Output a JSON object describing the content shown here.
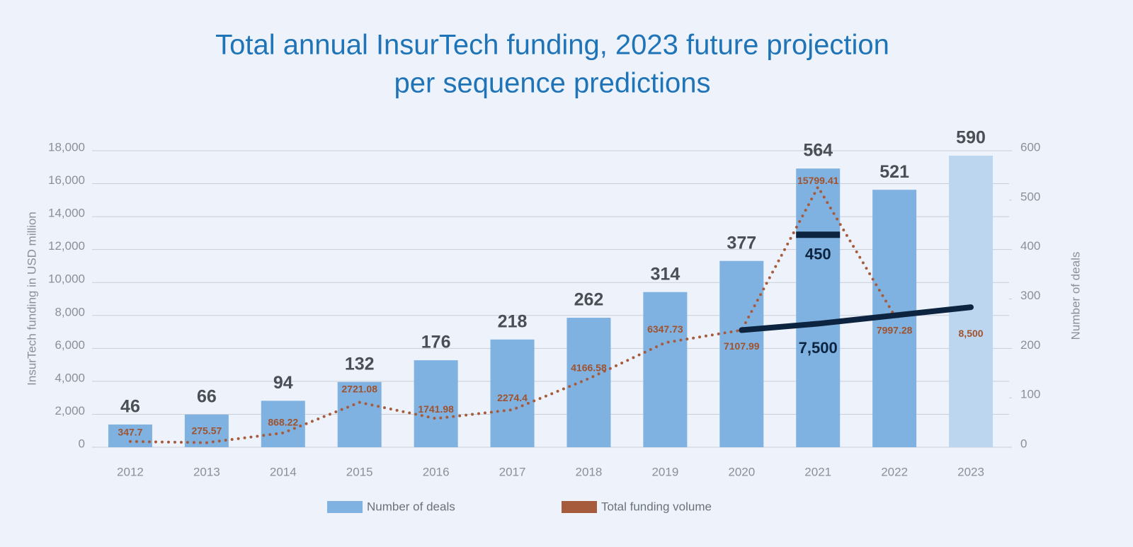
{
  "chart_data": {
    "type": "combo",
    "title": [
      "Total annual InsurTech funding, 2023 future projection",
      "per sequence predictions"
    ],
    "y_label": "InsurTech funding in USD million",
    "y2_label": "Number of deals",
    "categories": [
      "2012",
      "2013",
      "2014",
      "2015",
      "2016",
      "2017",
      "2018",
      "2019",
      "2020",
      "2021",
      "2022",
      "2023"
    ],
    "ylim": [
      0,
      18000
    ],
    "yticks": [
      0,
      {
        "value": 2000,
        "label": "2,000"
      },
      {
        "value": 4000,
        "label": "4,000"
      },
      {
        "value": 6000,
        "label": "6,000"
      },
      {
        "value": 8000,
        "label": "8,000"
      },
      {
        "value": 10000,
        "label": "10,000"
      },
      {
        "value": 12000,
        "label": "12,000"
      },
      {
        "value": 14000,
        "label": "14,000"
      },
      {
        "value": 16000,
        "label": "16,000"
      },
      {
        "value": 18000,
        "label": "18,000"
      }
    ],
    "y2lim": [
      0,
      600
    ],
    "y2ticks": [
      0,
      100,
      200,
      300,
      400,
      500,
      600
    ],
    "grid": true,
    "legend": "bottom",
    "series": [
      {
        "name": "Number of deals",
        "type": "bar",
        "axis": "y2",
        "color": "#80b2e1",
        "colors": [
          "#80b2e1",
          "#80b2e1",
          "#80b2e1",
          "#80b2e1",
          "#80b2e1",
          "#80b2e1",
          "#80b2e1",
          "#80b2e1",
          "#80b2e1",
          "#80b2e1",
          "#80b2e1",
          "#bdd6f0"
        ],
        "values": [
          46,
          66,
          94,
          132,
          176,
          218,
          262,
          314,
          377,
          564,
          521,
          590
        ]
      },
      {
        "name": "Total funding volume",
        "type": "line",
        "color": "#a65c3c",
        "values": [
          347.7,
          275.57,
          868.22,
          2721.08,
          1741.98,
          2274.4,
          4166.58,
          6347.73,
          7107.99,
          15799.41,
          7997.28,
          null
        ]
      }
    ],
    "projection": {
      "type": "line",
      "color": "#0d2440",
      "values": [
        null,
        null,
        null,
        null,
        null,
        null,
        null,
        null,
        7107.99,
        7500,
        8000,
        8500
      ],
      "value_labels": [
        null,
        null,
        null,
        null,
        null,
        null,
        null,
        null,
        null,
        "7,500",
        null,
        "8,500"
      ]
    },
    "deal_projection": {
      "type": "marker",
      "axis": "y2",
      "color": "#0d2440",
      "values": [
        null,
        null,
        null,
        null,
        null,
        null,
        null,
        null,
        null,
        450,
        null,
        null
      ]
    }
  }
}
